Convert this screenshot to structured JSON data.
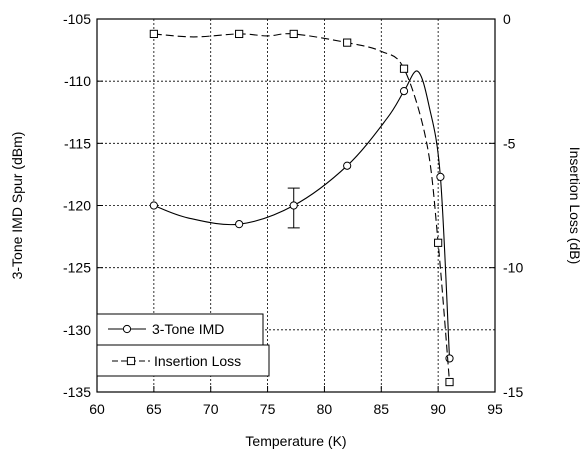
{
  "chart_data": {
    "type": "line",
    "title": "",
    "xlabel": "Temperature (K)",
    "ylabel_left": "3-Tone IMD Spur (dBm)",
    "ylabel_right": "Insertion Loss (dB)",
    "xlim": [
      60,
      95
    ],
    "ylim_left": [
      -135,
      -105
    ],
    "ylim_right": [
      -15,
      0
    ],
    "x_ticks": [
      60,
      65,
      70,
      75,
      80,
      85,
      90,
      95
    ],
    "y_left_ticks": [
      -105,
      -110,
      -115,
      -120,
      -125,
      -130,
      -135
    ],
    "y_right_ticks": [
      0,
      -5,
      -10,
      -15
    ],
    "grid": true,
    "legend_position": "bottom-left",
    "series": [
      {
        "name": "3-Tone IMD",
        "axis": "left",
        "marker": "circle",
        "line_style": "solid",
        "color": "#000000",
        "points": [
          {
            "x": 65,
            "y": -120
          },
          {
            "x": 72.5,
            "y": -121.5
          },
          {
            "x": 77.3,
            "y": -120
          },
          {
            "x": 82,
            "y": -116.8
          },
          {
            "x": 87,
            "y": -110.8
          },
          {
            "x": 90.2,
            "y": -117.7
          },
          {
            "x": 91,
            "y": -132.3
          }
        ],
        "curve": [
          {
            "x": 65,
            "y": -120
          },
          {
            "x": 68,
            "y": -121
          },
          {
            "x": 72.5,
            "y": -121.5
          },
          {
            "x": 77.3,
            "y": -120
          },
          {
            "x": 82,
            "y": -116.8
          },
          {
            "x": 85.5,
            "y": -113
          },
          {
            "x": 87,
            "y": -110.8
          },
          {
            "x": 88.2,
            "y": -109.2
          },
          {
            "x": 89.2,
            "y": -112
          },
          {
            "x": 90.2,
            "y": -117.7
          },
          {
            "x": 91,
            "y": -132.3
          }
        ],
        "error_bars": [
          {
            "x": 77.3,
            "y_low": -121.8,
            "y_high": -118.6
          }
        ]
      },
      {
        "name": "Insertion Loss",
        "axis": "right",
        "marker": "square",
        "line_style": "dashed",
        "color": "#000000",
        "points": [
          {
            "x": 65,
            "y": -0.6
          },
          {
            "x": 72.5,
            "y": -0.6
          },
          {
            "x": 77.3,
            "y": -0.6
          },
          {
            "x": 82,
            "y": -0.95
          },
          {
            "x": 87,
            "y": -2
          },
          {
            "x": 90,
            "y": -9
          },
          {
            "x": 91,
            "y": -14.6
          }
        ],
        "curve": [
          {
            "x": 65,
            "y": -0.6
          },
          {
            "x": 68.5,
            "y": -0.72
          },
          {
            "x": 72.5,
            "y": -0.6
          },
          {
            "x": 75,
            "y": -0.68
          },
          {
            "x": 77.3,
            "y": -0.6
          },
          {
            "x": 82,
            "y": -0.95
          },
          {
            "x": 85,
            "y": -1.3
          },
          {
            "x": 87,
            "y": -2
          },
          {
            "x": 89,
            "y": -5
          },
          {
            "x": 90,
            "y": -9
          },
          {
            "x": 91,
            "y": -14.6
          }
        ]
      }
    ]
  }
}
